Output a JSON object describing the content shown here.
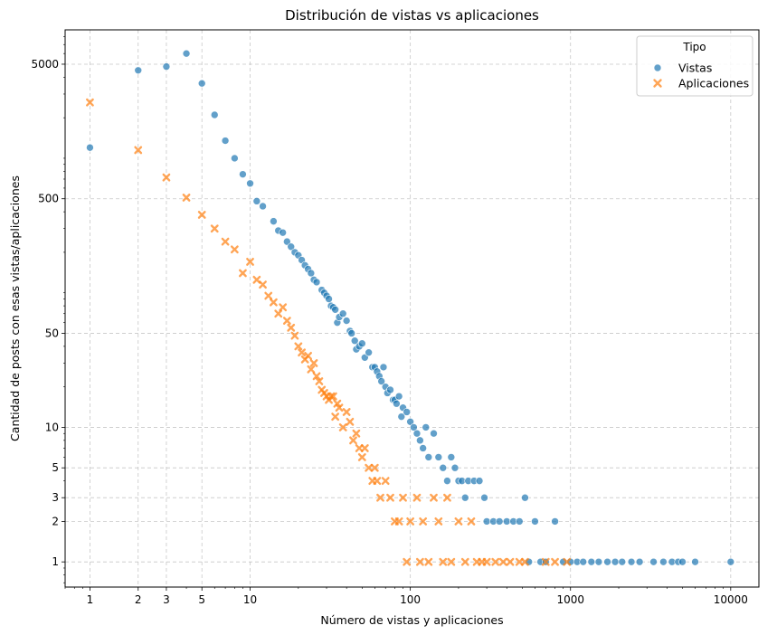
{
  "chart_data": {
    "type": "scatter",
    "title": "Distribución de vistas vs aplicaciones",
    "xlabel": "Número de vistas y aplicaciones",
    "ylabel": "Cantidad de posts con esas vistas/aplicaciones",
    "x_scale": "log",
    "y_scale": "log",
    "xlim": [
      0.7,
      15000
    ],
    "ylim": [
      0.65,
      9000
    ],
    "x_ticks": [
      1,
      2,
      3,
      5,
      10,
      100,
      1000,
      10000
    ],
    "x_tick_labels": [
      "1",
      "2",
      "3",
      "5",
      "10",
      "100",
      "1000",
      "10000"
    ],
    "y_ticks": [
      1,
      2,
      3,
      5,
      10,
      50,
      500,
      5000
    ],
    "y_tick_labels": [
      "1",
      "2",
      "3",
      "5",
      "10",
      "50",
      "500",
      "5000"
    ],
    "grid": true,
    "legend": {
      "title": "Tipo",
      "placement": "top-right",
      "entries": [
        {
          "name": "Vistas",
          "marker": "circle",
          "color": "#1f77b4"
        },
        {
          "name": "Aplicaciones",
          "marker": "x",
          "color": "#ff7f0e"
        }
      ]
    },
    "series": [
      {
        "name": "Vistas",
        "marker": "circle",
        "color": "#1f77b4",
        "points": [
          [
            1,
            1200
          ],
          [
            2,
            4500
          ],
          [
            3,
            4800
          ],
          [
            4,
            6000
          ],
          [
            5,
            3600
          ],
          [
            6,
            2100
          ],
          [
            7,
            1350
          ],
          [
            8,
            1000
          ],
          [
            9,
            760
          ],
          [
            10,
            650
          ],
          [
            11,
            480
          ],
          [
            12,
            440
          ],
          [
            14,
            340
          ],
          [
            15,
            290
          ],
          [
            16,
            280
          ],
          [
            17,
            240
          ],
          [
            18,
            220
          ],
          [
            19,
            200
          ],
          [
            20,
            190
          ],
          [
            21,
            175
          ],
          [
            22,
            160
          ],
          [
            23,
            150
          ],
          [
            24,
            140
          ],
          [
            25,
            125
          ],
          [
            26,
            120
          ],
          [
            28,
            105
          ],
          [
            29,
            100
          ],
          [
            30,
            95
          ],
          [
            31,
            90
          ],
          [
            32,
            80
          ],
          [
            33,
            78
          ],
          [
            34,
            75
          ],
          [
            35,
            60
          ],
          [
            36,
            66
          ],
          [
            38,
            70
          ],
          [
            40,
            62
          ],
          [
            42,
            52
          ],
          [
            43,
            50
          ],
          [
            45,
            44
          ],
          [
            46,
            38
          ],
          [
            48,
            40
          ],
          [
            50,
            42
          ],
          [
            52,
            33
          ],
          [
            55,
            36
          ],
          [
            58,
            28
          ],
          [
            60,
            28
          ],
          [
            62,
            26
          ],
          [
            64,
            24
          ],
          [
            66,
            22
          ],
          [
            68,
            28
          ],
          [
            70,
            20
          ],
          [
            72,
            18
          ],
          [
            75,
            19
          ],
          [
            78,
            16
          ],
          [
            80,
            16
          ],
          [
            82,
            15
          ],
          [
            85,
            17
          ],
          [
            88,
            12
          ],
          [
            90,
            14
          ],
          [
            95,
            13
          ],
          [
            100,
            11
          ],
          [
            105,
            10
          ],
          [
            110,
            9
          ],
          [
            115,
            8
          ],
          [
            120,
            7
          ],
          [
            125,
            10
          ],
          [
            130,
            6
          ],
          [
            140,
            9
          ],
          [
            150,
            6
          ],
          [
            160,
            5
          ],
          [
            170,
            4
          ],
          [
            180,
            6
          ],
          [
            190,
            5
          ],
          [
            200,
            4
          ],
          [
            210,
            4
          ],
          [
            220,
            3
          ],
          [
            230,
            4
          ],
          [
            250,
            4
          ],
          [
            270,
            4
          ],
          [
            290,
            3
          ],
          [
            300,
            2
          ],
          [
            330,
            2
          ],
          [
            360,
            2
          ],
          [
            400,
            2
          ],
          [
            440,
            2
          ],
          [
            480,
            2
          ],
          [
            520,
            3
          ],
          [
            550,
            1
          ],
          [
            600,
            2
          ],
          [
            650,
            1
          ],
          [
            700,
            1
          ],
          [
            800,
            2
          ],
          [
            900,
            1
          ],
          [
            1000,
            1
          ],
          [
            1100,
            1
          ],
          [
            1200,
            1
          ],
          [
            1350,
            1
          ],
          [
            1500,
            1
          ],
          [
            1700,
            1
          ],
          [
            1900,
            1
          ],
          [
            2100,
            1
          ],
          [
            2400,
            1
          ],
          [
            2700,
            1
          ],
          [
            3300,
            1
          ],
          [
            3800,
            1
          ],
          [
            4300,
            1
          ],
          [
            4700,
            1
          ],
          [
            5000,
            1
          ],
          [
            6000,
            1
          ],
          [
            10000,
            1
          ]
        ]
      },
      {
        "name": "Aplicaciones",
        "marker": "x",
        "color": "#ff7f0e",
        "points": [
          [
            1,
            2600
          ],
          [
            2,
            1150
          ],
          [
            3,
            720
          ],
          [
            4,
            510
          ],
          [
            5,
            380
          ],
          [
            6,
            300
          ],
          [
            7,
            240
          ],
          [
            8,
            210
          ],
          [
            9,
            140
          ],
          [
            10,
            170
          ],
          [
            11,
            125
          ],
          [
            12,
            115
          ],
          [
            13,
            95
          ],
          [
            14,
            85
          ],
          [
            15,
            70
          ],
          [
            16,
            78
          ],
          [
            17,
            62
          ],
          [
            18,
            55
          ],
          [
            19,
            48
          ],
          [
            20,
            40
          ],
          [
            21,
            36
          ],
          [
            22,
            32
          ],
          [
            23,
            34
          ],
          [
            24,
            27
          ],
          [
            25,
            30
          ],
          [
            26,
            24
          ],
          [
            27,
            22
          ],
          [
            28,
            19
          ],
          [
            29,
            18
          ],
          [
            30,
            17
          ],
          [
            31,
            16
          ],
          [
            32,
            17
          ],
          [
            33,
            17
          ],
          [
            34,
            12
          ],
          [
            35,
            15
          ],
          [
            36,
            14
          ],
          [
            38,
            10
          ],
          [
            40,
            13
          ],
          [
            42,
            11
          ],
          [
            44,
            8
          ],
          [
            46,
            9
          ],
          [
            48,
            7
          ],
          [
            50,
            6
          ],
          [
            52,
            7
          ],
          [
            55,
            5
          ],
          [
            58,
            4
          ],
          [
            60,
            5
          ],
          [
            62,
            4
          ],
          [
            65,
            3
          ],
          [
            70,
            4
          ],
          [
            75,
            3
          ],
          [
            80,
            2
          ],
          [
            85,
            2
          ],
          [
            90,
            3
          ],
          [
            95,
            1
          ],
          [
            100,
            2
          ],
          [
            110,
            3
          ],
          [
            115,
            1
          ],
          [
            120,
            2
          ],
          [
            130,
            1
          ],
          [
            140,
            3
          ],
          [
            150,
            2
          ],
          [
            160,
            1
          ],
          [
            170,
            3
          ],
          [
            180,
            1
          ],
          [
            200,
            2
          ],
          [
            220,
            1
          ],
          [
            240,
            2
          ],
          [
            260,
            1
          ],
          [
            280,
            1
          ],
          [
            300,
            1
          ],
          [
            340,
            1
          ],
          [
            380,
            1
          ],
          [
            420,
            1
          ],
          [
            480,
            1
          ],
          [
            520,
            1
          ],
          [
            700,
            1
          ],
          [
            800,
            1
          ],
          [
            950,
            1
          ]
        ]
      }
    ]
  }
}
